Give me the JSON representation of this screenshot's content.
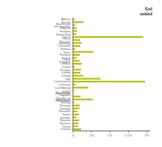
{
  "chart_data": {
    "type": "bar",
    "orientation": "horizontal",
    "title": "Soil\nsealed",
    "color": "#b5bd00",
    "categories": [
      "Albania",
      "Austria",
      "Bosnia and Herzegovina",
      "Belgium",
      "Hungary",
      "Switzerland",
      "Cyprus",
      "Czech Republic",
      "Germany",
      "Denmark",
      "Estonia",
      "Spain",
      "Hungary",
      "France",
      "United Kingdom",
      "Greece",
      "Croatia",
      "Portugal",
      "Iceland",
      "Iceland",
      "Italy",
      "Liechtenstein",
      "Lithuania",
      "Luxembourg",
      "Latvia",
      "Montenegro",
      "The Former Yugoslav Republic of Macedonia",
      "Netherlands",
      "Norway",
      "Portugal",
      "Portugal",
      "Romania",
      "Serbia",
      "Sweden",
      "Slovakia",
      "Slovenia",
      "Turkey",
      "Kosovo"
    ],
    "values": [
      0.04,
      0.28,
      0.06,
      0.1,
      0.12,
      0.09,
      1.9,
      0.2,
      0.23,
      0.2,
      0.06,
      0.55,
      0.19,
      0.1,
      0.18,
      0.24,
      0.05,
      0.22,
      0.2,
      0.28,
      0.75,
      1.95,
      0.07,
      0.42,
      0.04,
      0.01,
      0.21,
      0.54,
      0.04,
      0.19,
      0.18,
      0.12,
      0.17,
      0.1,
      0.17,
      0.15,
      0.14,
      0.22
    ],
    "xlim": [
      0,
      2.1
    ],
    "xticks": [
      0,
      {
        "value": 0.5,
        "label": ".5%"
      },
      {
        "value": 1.0,
        "label": "1%"
      },
      {
        "value": 1.5,
        "label": "1.5%"
      },
      {
        "value": 2.0,
        "label": "2%"
      }
    ]
  }
}
